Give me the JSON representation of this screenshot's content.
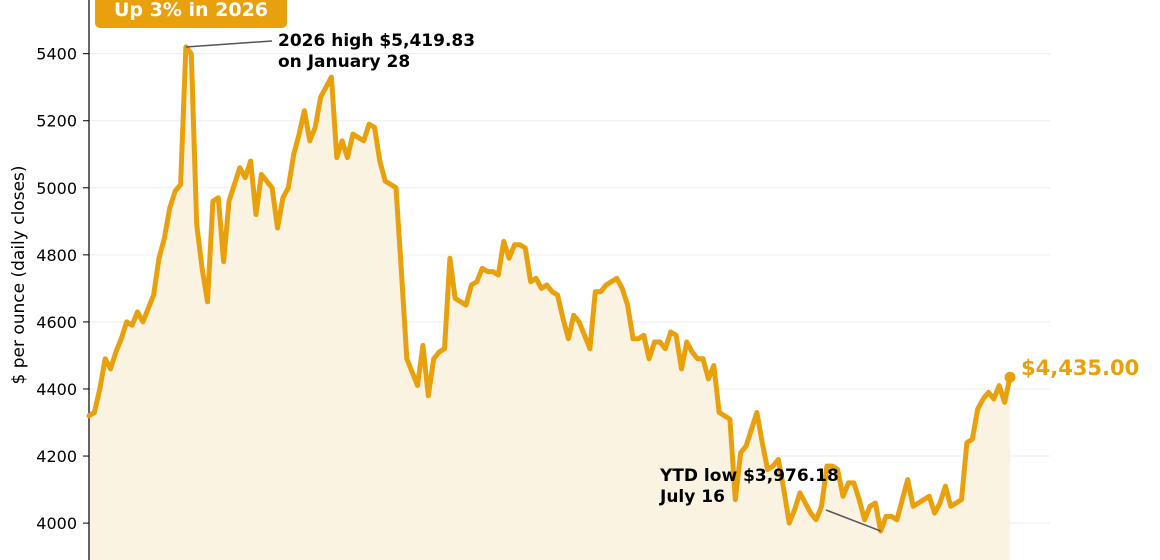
{
  "chart_data": {
    "type": "area",
    "ylabel": "$ per ounce (daily closes)",
    "ylim": [
      3890,
      5560
    ],
    "yticks": [
      4000,
      4200,
      4400,
      4600,
      4800,
      5000,
      5200,
      5400
    ],
    "grid": true,
    "series": [
      {
        "values": [
          4320,
          4330,
          4400,
          4490,
          4460,
          4510,
          4550,
          4600,
          4590,
          4630,
          4600,
          4640,
          4680,
          4790,
          4850,
          4940,
          4990,
          5010,
          5420,
          5400,
          4890,
          4760,
          4660,
          4960,
          4970,
          4780,
          4960,
          5010,
          5060,
          5030,
          5080,
          4920,
          5040,
          5020,
          5000,
          4880,
          4970,
          5000,
          5100,
          5160,
          5230,
          5140,
          5180,
          5270,
          5300,
          5330,
          5090,
          5140,
          5090,
          5160,
          5150,
          5140,
          5190,
          5180,
          5080,
          5020,
          5010,
          5000,
          4750,
          4490,
          4450,
          4410,
          4530,
          4380,
          4490,
          4510,
          4520,
          4790,
          4670,
          4660,
          4650,
          4710,
          4720,
          4760,
          4750,
          4750,
          4740,
          4840,
          4790,
          4830,
          4830,
          4820,
          4720,
          4730,
          4700,
          4710,
          4690,
          4680,
          4610,
          4550,
          4620,
          4600,
          4560,
          4520,
          4690,
          4690,
          4710,
          4720,
          4730,
          4700,
          4650,
          4550,
          4550,
          4560,
          4490,
          4540,
          4540,
          4520,
          4570,
          4560,
          4460,
          4540,
          4510,
          4490,
          4490,
          4430,
          4470,
          4330,
          4320,
          4310,
          4070,
          4210,
          4230,
          4280,
          4330,
          4240,
          4160,
          4170,
          4190,
          4100,
          4000,
          4040,
          4090,
          4060,
          4030,
          4010,
          4050,
          4170,
          4170,
          4160,
          4080,
          4120,
          4120,
          4070,
          4010,
          4050,
          4060,
          3976.18,
          4020,
          4020,
          4010,
          4070,
          4130,
          4050,
          4060,
          4070,
          4080,
          4030,
          4060,
          4110,
          4050,
          4060,
          4070,
          4240,
          4250,
          4340,
          4370,
          4390,
          4370,
          4410,
          4360,
          4435
        ]
      }
    ],
    "annotations": {
      "high": {
        "line1": "2026 high $5,419.83",
        "line2": "on January 28",
        "value": 5419.83
      },
      "low": {
        "line1": "YTD low $3,976.18",
        "line2": "July 16",
        "value": 3976.18
      },
      "last": {
        "label": "$4,435.00",
        "value": 4435.0
      }
    },
    "badge": "Up 3% in 2026",
    "colors": {
      "line": "#E8A10D",
      "fill": "#FBF3E2",
      "badge": "#E8A10D",
      "grid": "#EDEDED"
    }
  }
}
